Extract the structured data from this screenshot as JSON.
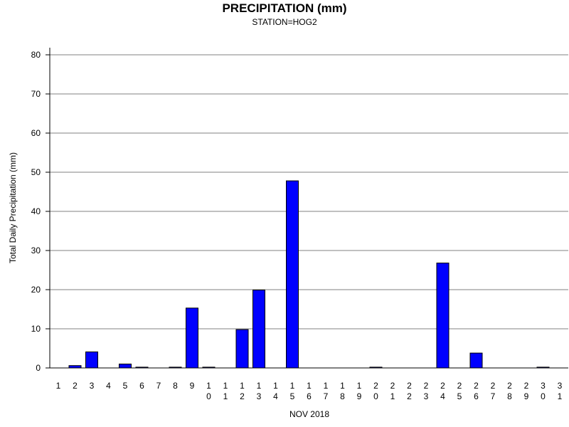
{
  "chart_data": {
    "type": "bar",
    "title": "PRECIPITATION (mm)",
    "subtitle": "STATION=HOG2",
    "xlabel": "NOV 2018",
    "ylabel": "Total Daily Precipitation (mm)",
    "ylim": [
      0,
      80
    ],
    "yticks": [
      0,
      10,
      20,
      30,
      40,
      50,
      60,
      70,
      80
    ],
    "grid": true,
    "bar_color": "#0000ff",
    "categories": [
      "1",
      "2",
      "3",
      "4",
      "5",
      "6",
      "7",
      "8",
      "9",
      "10",
      "11",
      "12",
      "13",
      "14",
      "15",
      "16",
      "17",
      "18",
      "19",
      "20",
      "21",
      "22",
      "23",
      "24",
      "25",
      "26",
      "27",
      "28",
      "29",
      "30",
      "31"
    ],
    "values": [
      0,
      0.6,
      4.1,
      0,
      1.0,
      0.2,
      0,
      0.2,
      15.3,
      0.2,
      0,
      9.8,
      19.9,
      0,
      47.8,
      0,
      0,
      0,
      0,
      0.2,
      0,
      0,
      0,
      26.8,
      0,
      3.8,
      0,
      0,
      0,
      0.2,
      0
    ]
  }
}
